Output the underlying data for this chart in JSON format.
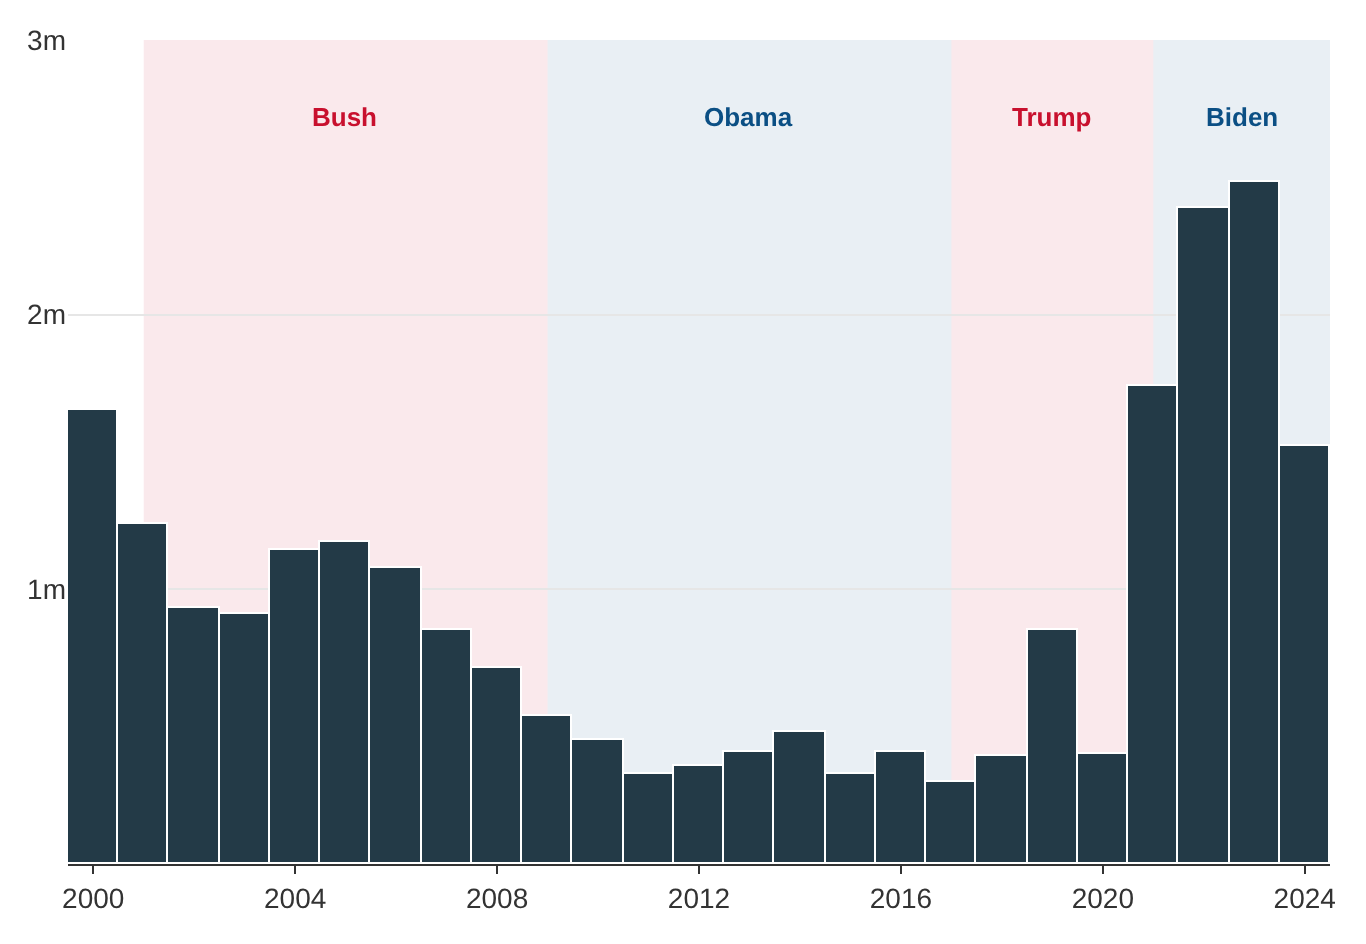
{
  "chart_data": {
    "type": "bar",
    "x": [
      2000,
      2001,
      2002,
      2003,
      2004,
      2005,
      2006,
      2007,
      2008,
      2009,
      2010,
      2011,
      2012,
      2013,
      2014,
      2015,
      2016,
      2017,
      2018,
      2019,
      2020,
      2021,
      2022,
      2023,
      2024
    ],
    "values": [
      1.65,
      1.24,
      0.93,
      0.91,
      1.14,
      1.17,
      1.08,
      0.85,
      0.71,
      0.54,
      0.45,
      0.33,
      0.36,
      0.41,
      0.48,
      0.33,
      0.41,
      0.3,
      0.39,
      0.85,
      0.4,
      1.74,
      2.39,
      2.48,
      1.52
    ],
    "color": "#233a47",
    "xlim": [
      1999.5,
      2024.5
    ],
    "xticks": [
      2000,
      2004,
      2008,
      2012,
      2016,
      2020,
      2024
    ],
    "ylim": [
      0,
      3
    ],
    "yticks": [
      {
        "value": 1,
        "label": "1m"
      },
      {
        "value": 2,
        "label": "2m"
      },
      {
        "value": 3,
        "label": "3m"
      }
    ],
    "grid": "y",
    "bands": [
      {
        "axis": "x",
        "from": 2001,
        "to": 2009,
        "label": "Bush",
        "color": "#c8102e"
      },
      {
        "axis": "x",
        "from": 2009,
        "to": 2017,
        "label": "Obama",
        "color": "#0b4f84"
      },
      {
        "axis": "x",
        "from": 2017,
        "to": 2021,
        "label": "Trump",
        "color": "#c8102e"
      },
      {
        "axis": "x",
        "from": 2021,
        "to": 2024.5,
        "label": "Biden",
        "color": "#0b4f84"
      }
    ]
  }
}
